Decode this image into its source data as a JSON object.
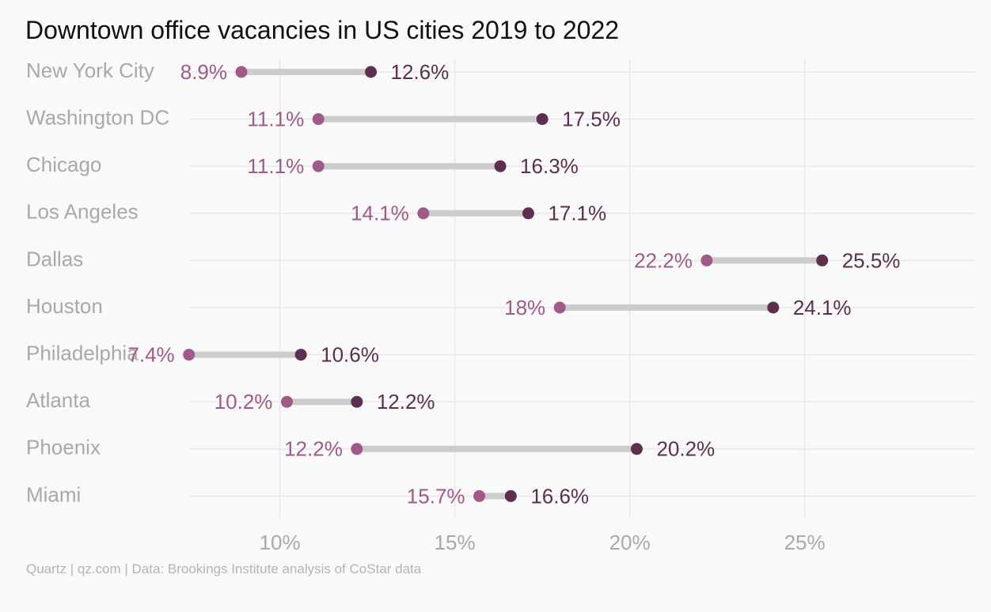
{
  "title": "Downtown office vacancies in US cities 2019 to 2022",
  "source": "Quartz | qz.com | Data: Brookings Institute analysis of CoStar data",
  "colors": {
    "start_dot": "#a05a8a",
    "end_dot": "#5e2f52",
    "connector": "#cccccc",
    "grid": "#e8e8e8"
  },
  "chart_data": {
    "type": "dumbbell",
    "title": "Downtown office vacancies in US cities 2019 to 2022",
    "categories": [
      "New York City",
      "Washington DC",
      "Chicago",
      "Los Angeles",
      "Dallas",
      "Houston",
      "Philadelphia",
      "Atlanta",
      "Phoenix",
      "Miami"
    ],
    "series": [
      {
        "values": [
          8.9,
          11.1,
          11.1,
          14.1,
          22.2,
          18,
          7.4,
          10.2,
          12.2,
          15.7
        ]
      },
      {
        "values": [
          12.6,
          17.5,
          16.3,
          17.1,
          25.5,
          24.1,
          10.6,
          12.2,
          20.2,
          16.6
        ]
      }
    ],
    "value_labels_start": [
      "8.9%",
      "11.1%",
      "11.1%",
      "14.1%",
      "22.2%",
      "18%",
      "7.4%",
      "10.2%",
      "12.2%",
      "15.7%"
    ],
    "value_labels_end": [
      "12.6%",
      "17.5%",
      "16.3%",
      "17.1%",
      "25.5%",
      "24.1%",
      "10.6%",
      "12.2%",
      "20.2%",
      "16.6%"
    ],
    "x_ticks": [
      10,
      15,
      20,
      25
    ],
    "x_tick_labels": [
      "10%",
      "15%",
      "20%",
      "25%"
    ],
    "xlim": [
      5.5,
      28
    ],
    "grid": true
  }
}
